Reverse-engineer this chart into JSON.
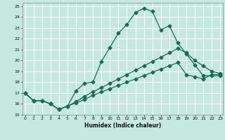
{
  "xlabel": "Humidex (Indice chaleur)",
  "bg_color": "#c5e8e0",
  "grid_color": "#ffffff",
  "line_color": "#1a6b5a",
  "xlim": [
    0,
    23
  ],
  "ylim": [
    15,
    25.3
  ],
  "xticks": [
    0,
    1,
    2,
    3,
    4,
    5,
    6,
    7,
    8,
    9,
    10,
    11,
    12,
    13,
    14,
    15,
    16,
    17,
    18,
    19,
    20,
    21,
    22,
    23
  ],
  "yticks": [
    15,
    16,
    17,
    18,
    19,
    20,
    21,
    22,
    23,
    24,
    25
  ],
  "line1_x": [
    0,
    1,
    2,
    3,
    4,
    5,
    6,
    7,
    8,
    9,
    10,
    11,
    12,
    13,
    14,
    15,
    16,
    17,
    18,
    19,
    20,
    21,
    22,
    23
  ],
  "line1_y": [
    17.0,
    16.3,
    16.3,
    16.0,
    15.5,
    15.8,
    17.2,
    17.9,
    18.0,
    19.9,
    21.2,
    22.5,
    23.3,
    24.4,
    24.8,
    24.5,
    22.8,
    23.2,
    21.6,
    20.6,
    19.6,
    18.6,
    18.6,
    18.6
  ],
  "line2_x": [
    0,
    1,
    2,
    3,
    4,
    5,
    6,
    7,
    8,
    9,
    10,
    11,
    12,
    13,
    14,
    15,
    16,
    17,
    18,
    19,
    20,
    21,
    22,
    23
  ],
  "line2_y": [
    17.0,
    16.3,
    16.3,
    16.0,
    15.5,
    15.8,
    16.2,
    16.7,
    17.1,
    17.5,
    17.9,
    18.3,
    18.7,
    19.1,
    19.5,
    19.9,
    20.3,
    20.7,
    21.1,
    20.7,
    20.0,
    19.5,
    19.0,
    18.8
  ],
  "line3_x": [
    0,
    1,
    2,
    3,
    4,
    5,
    6,
    7,
    8,
    9,
    10,
    11,
    12,
    13,
    14,
    15,
    16,
    17,
    18,
    19,
    20,
    21,
    22,
    23
  ],
  "line3_y": [
    17.0,
    16.3,
    16.3,
    16.0,
    15.5,
    15.8,
    16.1,
    16.4,
    16.8,
    17.1,
    17.4,
    17.7,
    18.0,
    18.3,
    18.6,
    18.9,
    19.2,
    19.5,
    19.8,
    18.7,
    18.5,
    18.3,
    18.7,
    18.7
  ]
}
